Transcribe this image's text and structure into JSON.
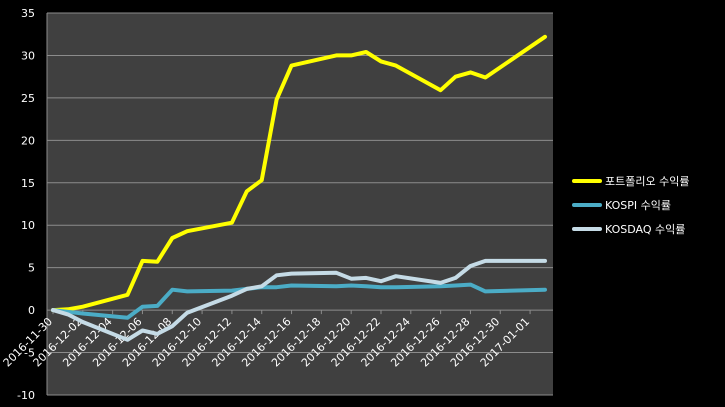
{
  "chart_data": {
    "type": "line",
    "title": "",
    "xlabel": "",
    "ylabel": "",
    "ylim": [
      -10,
      35
    ],
    "yticks": [
      "-10",
      "-5",
      "0",
      "5",
      "10",
      "15",
      "20",
      "25",
      "30",
      "35"
    ],
    "xticks": [
      "2016-11-30",
      "2016-12-02",
      "2016-12-04",
      "2016-12-06",
      "2016-12-08",
      "2016-12-10",
      "2016-12-12",
      "2016-12-14",
      "2016-12-16",
      "2016-12-18",
      "2016-12-20",
      "2016-12-22",
      "2016-12-24",
      "2016-12-26",
      "2016-12-28",
      "2016-12-30",
      "2017-01-01"
    ],
    "x": [
      "2016-11-30",
      "2016-12-01",
      "2016-12-02",
      "2016-12-05",
      "2016-12-06",
      "2016-12-07",
      "2016-12-08",
      "2016-12-09",
      "2016-12-12",
      "2016-12-13",
      "2016-12-14",
      "2016-12-15",
      "2016-12-16",
      "2016-12-19",
      "2016-12-20",
      "2016-12-21",
      "2016-12-22",
      "2016-12-23",
      "2016-12-26",
      "2016-12-27",
      "2016-12-28",
      "2016-12-29",
      "2017-01-02"
    ],
    "grid": true,
    "legend_position": "right",
    "background": "#404040",
    "series": [
      {
        "name": "포트폴리오 수익률",
        "color": "#ffff00",
        "values": [
          0,
          0.1,
          0.4,
          1.8,
          5.8,
          5.7,
          8.5,
          9.3,
          10.3,
          14.0,
          15.3,
          24.8,
          28.8,
          30.0,
          30.0,
          30.4,
          29.3,
          28.8,
          25.9,
          27.5,
          28.0,
          27.4,
          32.2
        ]
      },
      {
        "name": "KOSPI 수익률",
        "color": "#4bacc6",
        "values": [
          0,
          -0.2,
          -0.4,
          -0.9,
          0.4,
          0.5,
          2.4,
          2.2,
          2.3,
          2.5,
          2.7,
          2.7,
          2.9,
          2.8,
          2.9,
          2.8,
          2.7,
          2.7,
          2.8,
          2.9,
          3.0,
          2.2,
          2.4
        ]
      },
      {
        "name": "KOSDAQ 수익률",
        "color": "#c5dbe6",
        "values": [
          0,
          -0.5,
          -1.4,
          -3.5,
          -2.4,
          -2.8,
          -1.9,
          -0.3,
          1.7,
          2.5,
          2.8,
          4.1,
          4.3,
          4.4,
          3.7,
          3.8,
          3.4,
          4.0,
          3.2,
          3.8,
          5.2,
          5.8,
          5.8
        ]
      }
    ]
  }
}
